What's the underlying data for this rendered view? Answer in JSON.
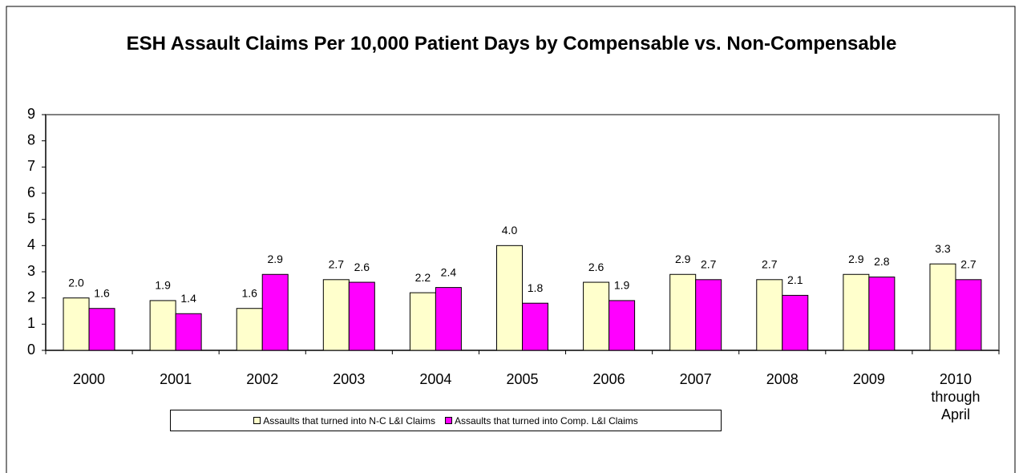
{
  "chart_data": {
    "type": "bar",
    "title": "ESH Assault Claims Per 10,000 Patient Days by Compensable vs. Non-Compensable",
    "categories": [
      "2000",
      "2001",
      "2002",
      "2003",
      "2004",
      "2005",
      "2006",
      "2007",
      "2008",
      "2009",
      "2010 through April"
    ],
    "series": [
      {
        "name": "Assaults that turned into N-C L&I Claims",
        "color": "#ffffcc",
        "values": [
          2.0,
          1.9,
          1.6,
          2.7,
          2.2,
          4.0,
          2.6,
          2.9,
          2.7,
          2.9,
          3.3
        ],
        "value_labels": [
          "2.0",
          "1.9",
          "1.6",
          "2.7",
          "2.2",
          "4.0",
          "2.6",
          "2.9",
          "2.7",
          "2.9",
          "3.3"
        ]
      },
      {
        "name": "Assaults that turned into Comp. L&I Claims",
        "color": "#ff00ff",
        "values": [
          1.6,
          1.4,
          2.9,
          2.6,
          2.4,
          1.8,
          1.9,
          2.7,
          2.1,
          2.8,
          2.7
        ],
        "value_labels": [
          "1.6",
          "1.4",
          "2.9",
          "2.6",
          "2.4",
          "1.8",
          "1.9",
          "2.7",
          "2.1",
          "2.8",
          "2.7"
        ]
      }
    ],
    "ylim": [
      0,
      9
    ],
    "yticks": [
      0,
      1,
      2,
      3,
      4,
      5,
      6,
      7,
      8,
      9
    ],
    "grid": false,
    "legend": "bottom"
  }
}
